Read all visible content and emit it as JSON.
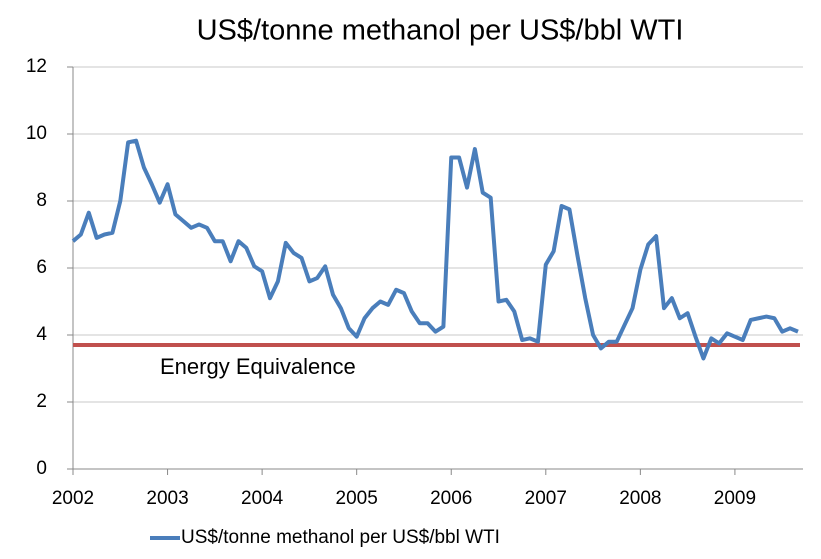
{
  "chart_data": {
    "type": "line",
    "title": "US$/tonne methanol per US$/bbl WTI",
    "x": [
      2002,
      2002.083,
      2002.167,
      2002.25,
      2002.333,
      2002.417,
      2002.5,
      2002.583,
      2002.667,
      2002.75,
      2002.833,
      2002.917,
      2003,
      2003.083,
      2003.167,
      2003.25,
      2003.333,
      2003.417,
      2003.5,
      2003.583,
      2003.667,
      2003.75,
      2003.833,
      2003.917,
      2004,
      2004.083,
      2004.167,
      2004.25,
      2004.333,
      2004.417,
      2004.5,
      2004.583,
      2004.667,
      2004.75,
      2004.833,
      2004.917,
      2005,
      2005.083,
      2005.167,
      2005.25,
      2005.333,
      2005.417,
      2005.5,
      2005.583,
      2005.667,
      2005.75,
      2005.833,
      2005.917,
      2006,
      2006.083,
      2006.167,
      2006.25,
      2006.333,
      2006.417,
      2006.5,
      2006.583,
      2006.667,
      2006.75,
      2006.833,
      2006.917,
      2007,
      2007.083,
      2007.167,
      2007.25,
      2007.333,
      2007.417,
      2007.5,
      2007.583,
      2007.667,
      2007.75,
      2007.833,
      2007.917,
      2008,
      2008.083,
      2008.167,
      2008.25,
      2008.333,
      2008.417,
      2008.5,
      2008.583,
      2008.667,
      2008.75,
      2008.833,
      2008.917,
      2009,
      2009.083,
      2009.167,
      2009.25,
      2009.333,
      2009.417,
      2009.5,
      2009.583,
      2009.667
    ],
    "series": [
      {
        "name": "US$/tonne methanol per US$/bbl WTI",
        "color": "#4a7ebb",
        "values": [
          6.8,
          7.0,
          7.65,
          6.9,
          7.0,
          7.05,
          8.0,
          9.75,
          9.8,
          9.0,
          8.5,
          7.95,
          8.5,
          7.6,
          7.4,
          7.2,
          7.3,
          7.2,
          6.8,
          6.8,
          6.2,
          6.8,
          6.6,
          6.05,
          5.9,
          5.1,
          5.6,
          6.75,
          6.45,
          6.3,
          5.6,
          5.7,
          6.05,
          5.2,
          4.8,
          4.2,
          3.95,
          4.5,
          4.8,
          5.0,
          4.9,
          5.35,
          5.25,
          4.7,
          4.35,
          4.35,
          4.1,
          4.25,
          9.3,
          9.3,
          8.4,
          9.55,
          8.25,
          8.1,
          5.0,
          5.05,
          4.7,
          3.85,
          3.9,
          3.8,
          6.1,
          6.5,
          7.85,
          7.75,
          6.4,
          5.1,
          4.0,
          3.6,
          3.8,
          3.8,
          4.3,
          4.8,
          5.95,
          6.7,
          6.95,
          4.8,
          5.1,
          4.5,
          4.65,
          3.95,
          3.3,
          3.9,
          3.75,
          4.05,
          3.95,
          3.85,
          4.45,
          4.5,
          4.55,
          4.5,
          4.1,
          4.2,
          4.1
        ]
      }
    ],
    "reference_line": {
      "label": "Energy Equivalence",
      "value": 3.7,
      "color": "#c0504d"
    },
    "xlim": [
      2002,
      2009.72
    ],
    "xticks": [
      2002,
      2003,
      2004,
      2005,
      2006,
      2007,
      2008,
      2009
    ],
    "ylim": [
      0,
      12
    ],
    "yticks": [
      0,
      2,
      4,
      6,
      8,
      10,
      12
    ],
    "grid": true,
    "legend": "bottom"
  }
}
